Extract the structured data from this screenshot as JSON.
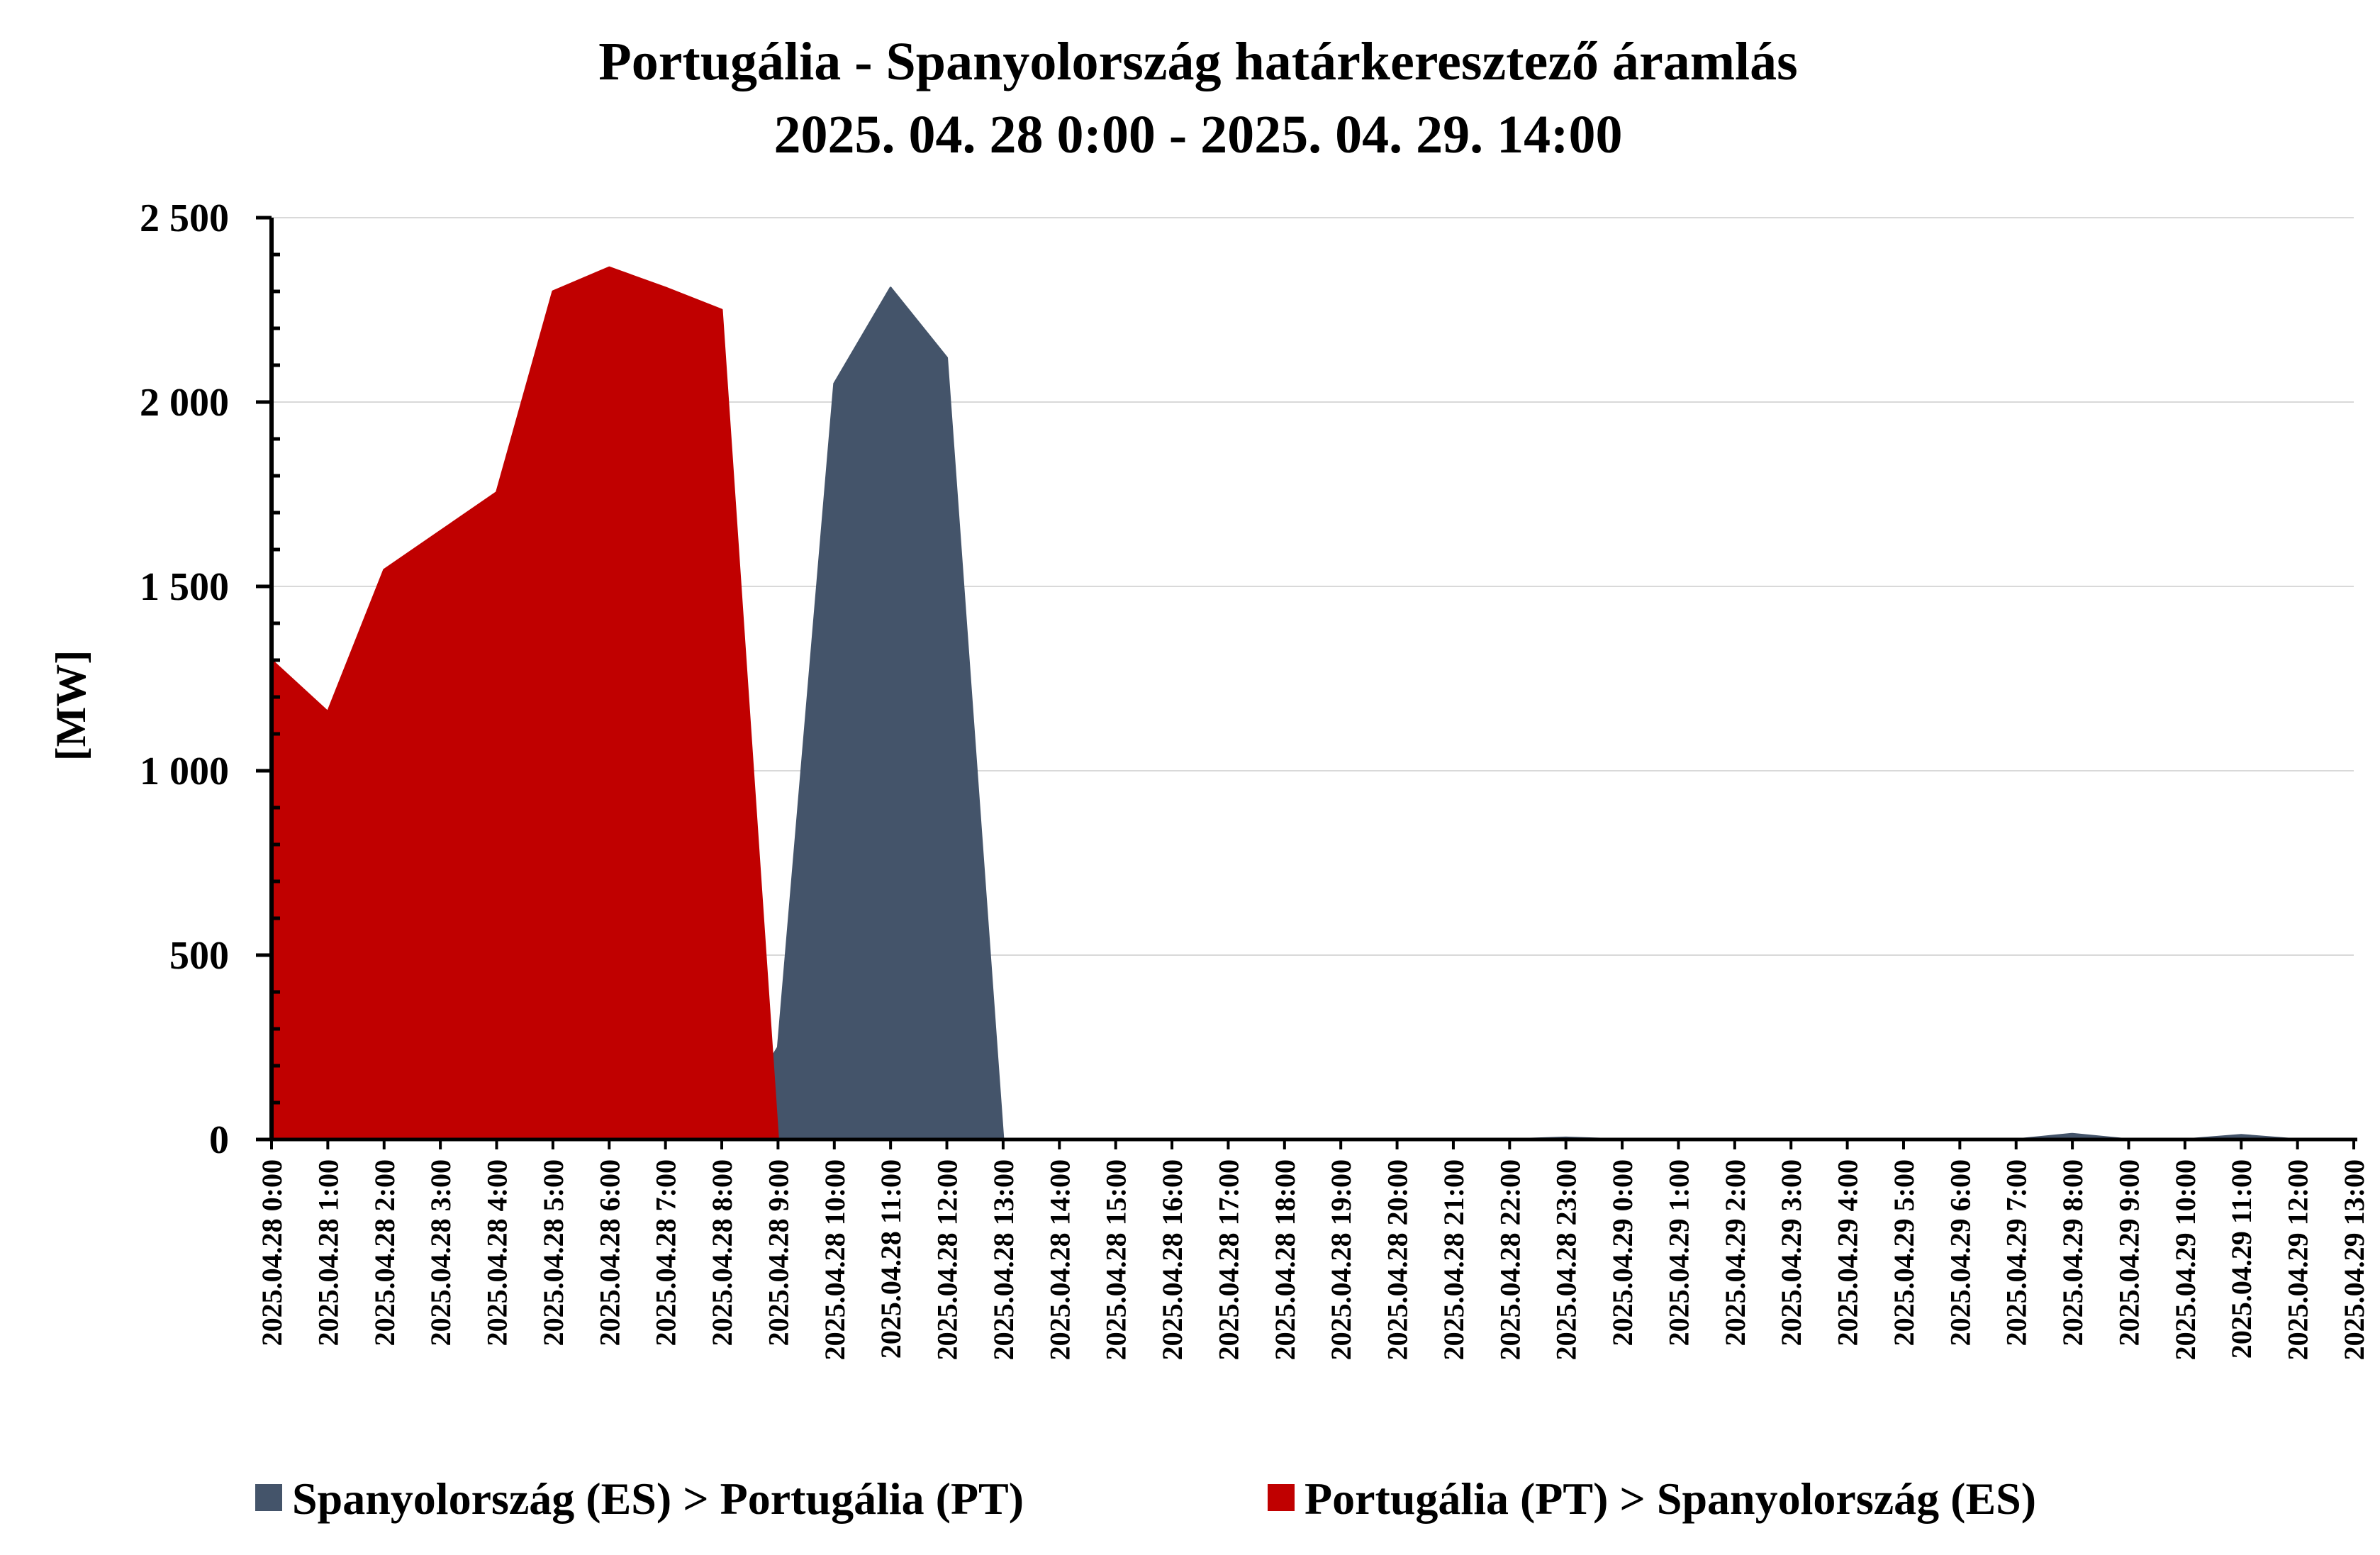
{
  "chart_data": {
    "type": "area",
    "title": "Portugália - Spanyolország határkeresztező áramlás",
    "subtitle": "2025. 04. 28 0:00 - 2025. 04. 29. 14:00",
    "ylabel": "[MW]",
    "xlabel": "",
    "ylim": [
      0,
      2500
    ],
    "yticks": [
      0,
      500,
      1000,
      1500,
      2000,
      2500
    ],
    "ytick_labels": [
      "0",
      "500",
      "1 000",
      "1 500",
      "2 000",
      "2 500"
    ],
    "grid": true,
    "legend_position": "bottom",
    "x": [
      "2025.04.28 0:00",
      "2025.04.28 1:00",
      "2025.04.28 2:00",
      "2025.04.28 3:00",
      "2025.04.28 4:00",
      "2025.04.28 5:00",
      "2025.04.28 6:00",
      "2025.04.28 7:00",
      "2025.04.28 8:00",
      "2025.04.28 9:00",
      "2025.04.28 10:00",
      "2025.04.28 11:00",
      "2025.04.28 12:00",
      "2025.04.28 13:00",
      "2025.04.28 14:00",
      "2025.04.28 15:00",
      "2025.04.28 16:00",
      "2025.04.28 17:00",
      "2025.04.28 18:00",
      "2025.04.28 19:00",
      "2025.04.28 20:00",
      "2025.04.28 21:00",
      "2025.04.28 22:00",
      "2025.04.28 23:00",
      "2025.04.29 0:00",
      "2025.04.29 1:00",
      "2025.04.29 2:00",
      "2025.04.29 3:00",
      "2025.04.29 4:00",
      "2025.04.29 5:00",
      "2025.04.29 6:00",
      "2025.04.29 7:00",
      "2025.04.29 8:00",
      "2025.04.29 9:00",
      "2025.04.29 10:00",
      "2025.04.29 11:00",
      "2025.04.29 12:00",
      "2025.04.29 13:00"
    ],
    "series": [
      {
        "name": "Spanyolország (ES) > Portugália (PT)",
        "color": "#44546a",
        "values": [
          0,
          0,
          0,
          0,
          0,
          0,
          0,
          0,
          0,
          250,
          2050,
          2310,
          2120,
          0,
          0,
          0,
          0,
          0,
          0,
          0,
          0,
          0,
          0,
          5,
          0,
          0,
          0,
          0,
          0,
          0,
          0,
          0,
          15,
          0,
          0,
          12,
          0,
          0
        ]
      },
      {
        "name": "Portugália (PT) > Spanyolország (ES)",
        "color": "#c00000",
        "values": [
          1300,
          1160,
          1545,
          1650,
          1755,
          2300,
          2365,
          2310,
          2250,
          0,
          0,
          0,
          0,
          0,
          0,
          0,
          0,
          0,
          0,
          0,
          0,
          0,
          0,
          0,
          0,
          0,
          0,
          0,
          0,
          0,
          0,
          0,
          0,
          0,
          0,
          0,
          0,
          0
        ]
      }
    ]
  }
}
